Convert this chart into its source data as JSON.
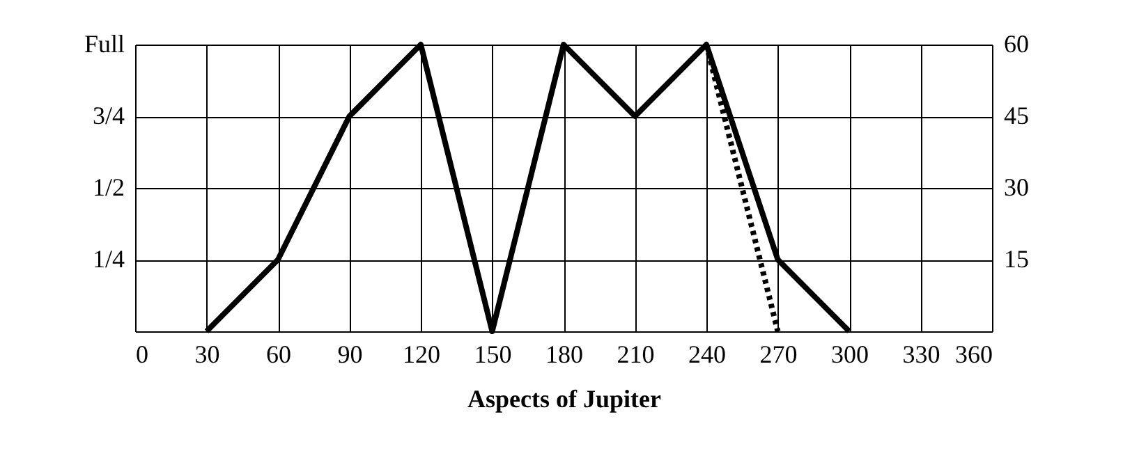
{
  "chart_data": {
    "type": "line",
    "xlabel": "Aspects of Jupiter",
    "xlim": [
      0,
      360
    ],
    "xticks": [
      0,
      30,
      60,
      90,
      120,
      150,
      180,
      210,
      240,
      270,
      300,
      330,
      360
    ],
    "ylim": [
      0,
      1
    ],
    "yticks": [
      {
        "value": 0.25,
        "label": "1/4"
      },
      {
        "value": 0.5,
        "label": "1/2"
      },
      {
        "value": 0.75,
        "label": "3/4"
      },
      {
        "value": 1,
        "label": "Full"
      }
    ],
    "y2lim": [
      0,
      60
    ],
    "y2ticks": [
      15,
      30,
      45,
      60
    ],
    "grid": true,
    "marker": "none",
    "series": [
      {
        "color": "#000000",
        "line_style": "solid",
        "x": [
          30,
          60,
          90,
          120,
          150,
          180,
          210,
          240,
          270,
          300
        ],
        "values": [
          0,
          0.25,
          0.75,
          1,
          0,
          1,
          0.75,
          1,
          0.25,
          0
        ]
      },
      {
        "color": "#000000",
        "line_style": "dotted",
        "axis": "y2",
        "x": [
          240,
          270
        ],
        "values": [
          60,
          0
        ]
      }
    ]
  }
}
